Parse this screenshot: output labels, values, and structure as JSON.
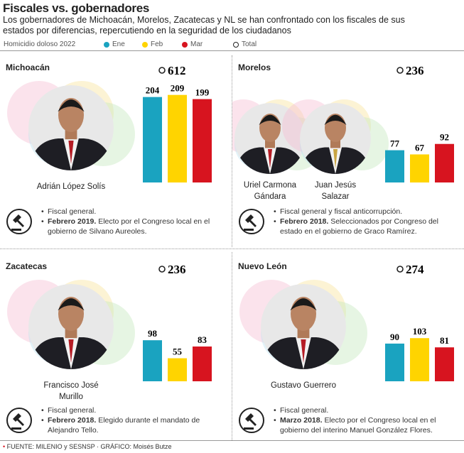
{
  "header": {
    "title": "Fiscales vs. gobernadores",
    "subtitle": "Los gobernadores de Michoacán, Morelos, Zacatecas y NL se han confrontado con los fiscales de sus estados por diferencias, repercutiendo en la seguridad de los ciudadanos"
  },
  "legend": {
    "label": "Homicidio doloso 2022",
    "items": [
      {
        "name": "Ene",
        "color": "#1aa3c0"
      },
      {
        "name": "Feb",
        "color": "#ffd400"
      },
      {
        "name": "Mar",
        "color": "#d7141f"
      },
      {
        "name": "Total"
      }
    ]
  },
  "chart_data": [
    {
      "type": "bar",
      "title": "Michoacán",
      "total": 612,
      "values": [
        204,
        209,
        199
      ],
      "people": [
        "Adrián López Solís"
      ],
      "notes": [
        {
          "text": "Fiscal general."
        },
        {
          "date": "Febrero 2019.",
          "text": "Electo por el Congreso local en el gobierno de Silvano Aureoles."
        }
      ]
    },
    {
      "type": "bar",
      "title": "Morelos",
      "total": 236,
      "values": [
        77,
        67,
        92
      ],
      "people": [
        "Uriel Carmona Gándara",
        "Juan Jesús Salazar"
      ],
      "notes": [
        {
          "text": "Fiscal general y fiscal anticorrupción."
        },
        {
          "date": "Febrero 2018.",
          "text": "Seleccionados por Congreso del estado en el gobierno de Graco Ramírez."
        }
      ]
    },
    {
      "type": "bar",
      "title": "Zacatecas",
      "total": 236,
      "values": [
        98,
        55,
        83
      ],
      "people": [
        "Francisco José Murillo"
      ],
      "notes": [
        {
          "text": "Fiscal general."
        },
        {
          "date": "Febrero 2018.",
          "text": "Elegido durante el mandato de Alejandro Tello."
        }
      ]
    },
    {
      "type": "bar",
      "title": "Nuevo León",
      "total": 274,
      "values": [
        90,
        103,
        81
      ],
      "people": [
        "Gustavo Guerrero"
      ],
      "notes": [
        {
          "text": "Fiscal general."
        },
        {
          "date": "Marzo 2018.",
          "text": "Electo por el Congreso local en el gobierno del interino Manuel González Flores."
        }
      ]
    }
  ],
  "footer": "FUENTE: MILENIO y SESNSP · GRÁFICO: Moisés Butze"
}
